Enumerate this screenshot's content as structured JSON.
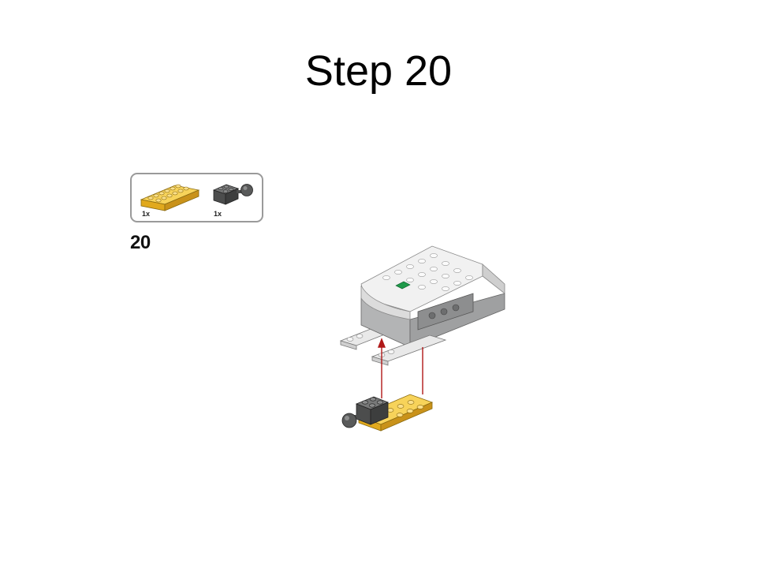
{
  "slide": {
    "title": "Step 20"
  },
  "instruction": {
    "step_number": "20",
    "parts": [
      {
        "name": "yellow-plate-2x6",
        "quantity": "1x",
        "color": "#f2c12e"
      },
      {
        "name": "dark-gray-brick-with-ball",
        "quantity": "1x",
        "color": "#5a5b5b"
      }
    ],
    "colors": {
      "hub_white": "#f2f2f2",
      "hub_gray": "#a6a7a8",
      "arrow_red": "#b01818",
      "hub_led": "#1f9a4a"
    }
  }
}
